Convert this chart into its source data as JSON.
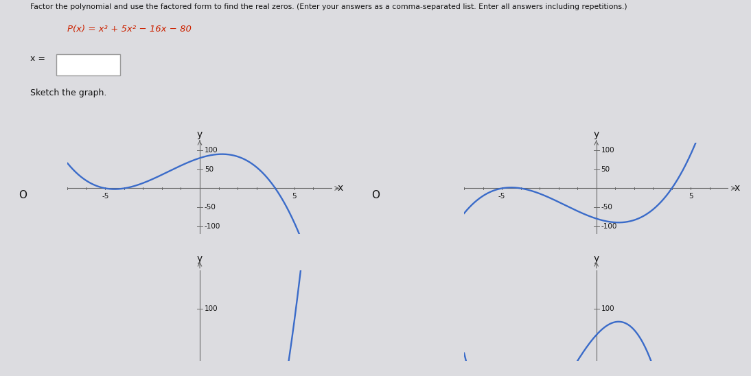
{
  "title_line1": "Factor the polynomial and use the factored form to find the real zeros. (Enter your answers as a comma-separated list. Enter all answers including repetitions.)",
  "formula": "P(x) = x³ + 5x² − 16x − 80",
  "sketch_label": "Sketch the graph.",
  "bg_color": "#dcdce0",
  "line_color": "#3a6bc9",
  "axis_color": "#666666",
  "text_color": "#111111",
  "formula_color": "#cc2200",
  "ylim": [
    -120,
    120
  ],
  "xlim": [
    -7,
    7
  ],
  "yticks": [
    -100,
    -50,
    50,
    100
  ],
  "graph1_negate": true,
  "graph2_negate": false,
  "title_fontsize": 7.8,
  "formula_fontsize": 9.5,
  "label_fontsize": 9,
  "tick_fontsize": 7.5
}
